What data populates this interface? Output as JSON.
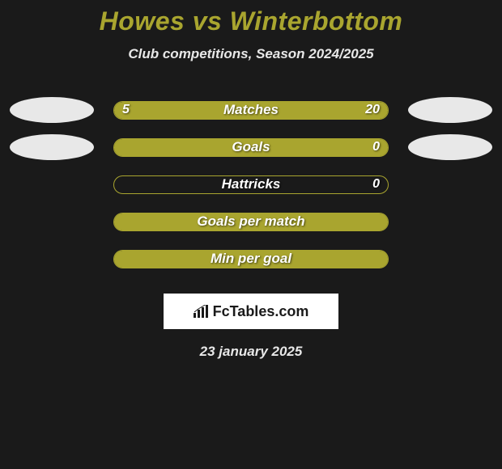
{
  "title": "Howes vs Winterbottom",
  "subtitle": "Club competitions, Season 2024/2025",
  "date": "23 january 2025",
  "logo_text": "FcTables.com",
  "colors": {
    "accent": "#a9a52f",
    "background": "#1a1a1a",
    "text_light": "#e8e8e8",
    "text_white": "#ffffff",
    "ellipse": "#e8e8e8",
    "logo_bg": "#ffffff"
  },
  "stats": [
    {
      "label": "Matches",
      "left_value": "5",
      "right_value": "20",
      "left_pct": 20,
      "right_pct": 80,
      "show_ellipses": true
    },
    {
      "label": "Goals",
      "left_value": "",
      "right_value": "0",
      "left_pct": 100,
      "right_pct": 0,
      "show_ellipses": true
    },
    {
      "label": "Hattricks",
      "left_value": "",
      "right_value": "0",
      "left_pct": 0,
      "right_pct": 0,
      "show_ellipses": false
    },
    {
      "label": "Goals per match",
      "left_value": "",
      "right_value": "",
      "left_pct": 100,
      "right_pct": 0,
      "show_ellipses": false
    },
    {
      "label": "Min per goal",
      "left_value": "",
      "right_value": "",
      "left_pct": 100,
      "right_pct": 0,
      "show_ellipses": false
    }
  ]
}
